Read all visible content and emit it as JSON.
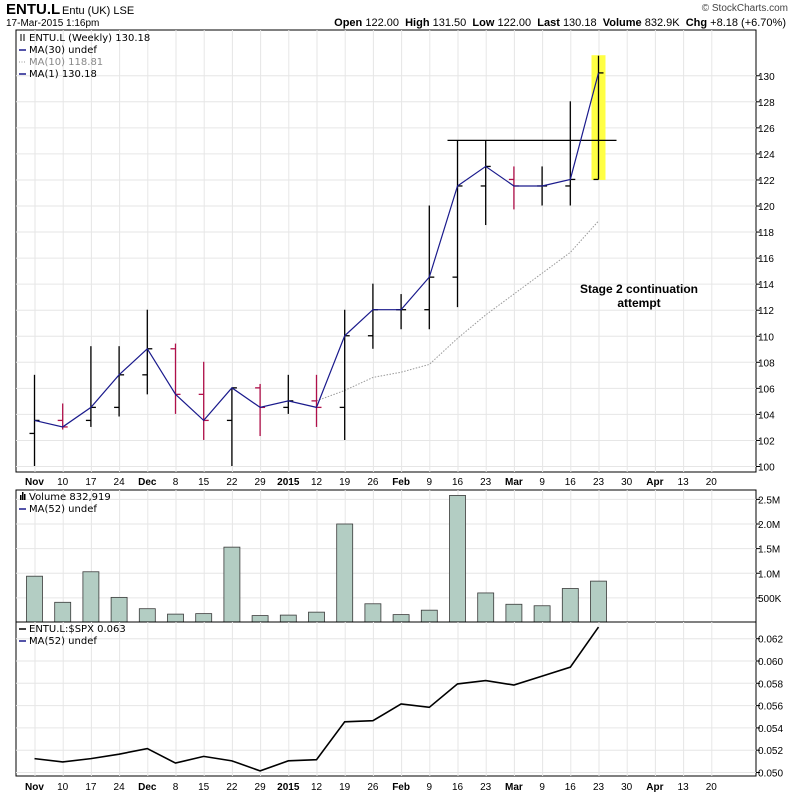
{
  "header": {
    "symbol": "ENTU.L",
    "name": "Entu (UK)",
    "exchange": "LSE",
    "date": "17-Mar-2015 1:16pm",
    "open_label": "Open",
    "open": "122.00",
    "high_label": "High",
    "high": "131.50",
    "low_label": "Low",
    "low": "122.00",
    "last_label": "Last",
    "last": "130.18",
    "volume_label": "Volume",
    "volume": "832.9K",
    "chg_label": "Chg",
    "chg": "+8.18 (+6.70%)",
    "logo": "© StockCharts.com"
  },
  "price_legend": [
    "ENTU.L (Weekly) 130.18",
    "MA(30) undef",
    "MA(10) 118.81",
    "MA(1) 130.18"
  ],
  "volume_legend": [
    "Volume 832,919",
    "MA(52) undef"
  ],
  "rs_legend": [
    "ENTU.L:$SPX 0.063",
    "MA(52) undef"
  ],
  "annotation": [
    "Stage 2 continuation",
    "attempt"
  ],
  "colors": {
    "up": "#000000",
    "down": "#b0104a",
    "ma1": "#1a1a8c",
    "ma10": "#999999",
    "volume": "#b3cdc3",
    "highlight": "#ffff44"
  },
  "chart_data": [
    {
      "type": "ohlc",
      "title": "ENTU.L (Weekly)",
      "x_labels": [
        "Nov",
        "10",
        "17",
        "24",
        "Dec",
        "8",
        "15",
        "22",
        "29",
        "2015",
        "12",
        "19",
        "26",
        "Feb",
        "9",
        "16",
        "23",
        "Mar",
        "9",
        "16",
        "23",
        "30",
        "Apr",
        "13",
        "20"
      ],
      "ylim": [
        99.5,
        131.5
      ],
      "y_ticks": [
        100,
        102,
        104,
        106,
        108,
        110,
        112,
        114,
        116,
        118,
        120,
        122,
        124,
        126,
        128,
        130
      ],
      "bars": [
        {
          "o": 102.5,
          "h": 107,
          "l": 100,
          "c": 103.5,
          "dir": "up"
        },
        {
          "o": 103.5,
          "h": 104.8,
          "l": 102.8,
          "c": 103,
          "dir": "down"
        },
        {
          "o": 103.5,
          "h": 109.2,
          "l": 103,
          "c": 104.5,
          "dir": "up"
        },
        {
          "o": 104.5,
          "h": 109.2,
          "l": 103.8,
          "c": 107,
          "dir": "up"
        },
        {
          "o": 107,
          "h": 112,
          "l": 105.5,
          "c": 109,
          "dir": "up"
        },
        {
          "o": 109,
          "h": 109.4,
          "l": 104,
          "c": 105.5,
          "dir": "down"
        },
        {
          "o": 105.5,
          "h": 108,
          "l": 102,
          "c": 103.5,
          "dir": "down"
        },
        {
          "o": 103.5,
          "h": 106,
          "l": 100,
          "c": 106,
          "dir": "up"
        },
        {
          "o": 106,
          "h": 106.3,
          "l": 102.3,
          "c": 104.5,
          "dir": "down"
        },
        {
          "o": 104.5,
          "h": 107,
          "l": 104,
          "c": 105,
          "dir": "up"
        },
        {
          "o": 105,
          "h": 107,
          "l": 103,
          "c": 104.5,
          "dir": "down"
        },
        {
          "o": 104.5,
          "h": 112,
          "l": 102,
          "c": 110,
          "dir": "up"
        },
        {
          "o": 110,
          "h": 114,
          "l": 109,
          "c": 112,
          "dir": "up"
        },
        {
          "o": 112,
          "h": 113.2,
          "l": 110.5,
          "c": 112,
          "dir": "up"
        },
        {
          "o": 112,
          "h": 120,
          "l": 110.5,
          "c": 114.5,
          "dir": "up"
        },
        {
          "o": 114.5,
          "h": 125,
          "l": 112.2,
          "c": 121.5,
          "dir": "up"
        },
        {
          "o": 121.5,
          "h": 125,
          "l": 118.5,
          "c": 123,
          "dir": "up"
        },
        {
          "o": 122,
          "h": 123,
          "l": 119.7,
          "c": 121.5,
          "dir": "down"
        },
        {
          "o": 121.5,
          "h": 123,
          "l": 120,
          "c": 121.5,
          "dir": "up"
        },
        {
          "o": 121.5,
          "h": 128,
          "l": 120,
          "c": 122,
          "dir": "up"
        },
        {
          "o": 122,
          "h": 131.5,
          "l": 122,
          "c": 130.18,
          "dir": "up"
        }
      ],
      "ma1": [
        103.5,
        103,
        104.5,
        107,
        109,
        105.5,
        103.5,
        106,
        104.5,
        105,
        104.5,
        110,
        112,
        112,
        114.5,
        121.5,
        123,
        121.5,
        121.5,
        122,
        130.18
      ],
      "ma10": [
        null,
        null,
        null,
        null,
        null,
        null,
        null,
        null,
        null,
        null,
        105,
        105.8,
        106.8,
        107.2,
        107.8,
        109.8,
        111.6,
        113.2,
        114.8,
        116.4,
        118.81
      ],
      "resistance": 125,
      "annotation_text": "Stage 2 continuation attempt"
    },
    {
      "type": "bar",
      "title": "Volume",
      "ylim": [
        0,
        2.7
      ],
      "y_ticks": [
        0.5,
        1.0,
        1.5,
        2.0,
        2.5
      ],
      "y_tick_labels": [
        "500K",
        "1.0M",
        "1.5M",
        "2.0M",
        "2.5M"
      ],
      "values": [
        0.93,
        0.4,
        1.02,
        0.5,
        0.27,
        0.16,
        0.17,
        1.52,
        0.13,
        0.14,
        0.2,
        1.99,
        0.37,
        0.15,
        0.24,
        2.57,
        0.59,
        0.36,
        0.33,
        0.68,
        0.83
      ]
    },
    {
      "type": "line",
      "title": "ENTU.L:$SPX",
      "ylim": [
        0.0497,
        0.0637
      ],
      "y_ticks": [
        0.05,
        0.052,
        0.054,
        0.056,
        0.058,
        0.06,
        0.062
      ],
      "y_tick_labels": [
        "0.050",
        "0.052",
        "0.054",
        "0.056",
        "0.058",
        "0.060",
        "0.062"
      ],
      "values": [
        0.0512,
        0.0509,
        0.0512,
        0.0516,
        0.0521,
        0.0508,
        0.0514,
        0.051,
        0.0501,
        0.051,
        0.0511,
        0.0545,
        0.0546,
        0.0561,
        0.0558,
        0.0579,
        0.0582,
        0.0578,
        0.0586,
        0.0594,
        0.063
      ]
    }
  ]
}
